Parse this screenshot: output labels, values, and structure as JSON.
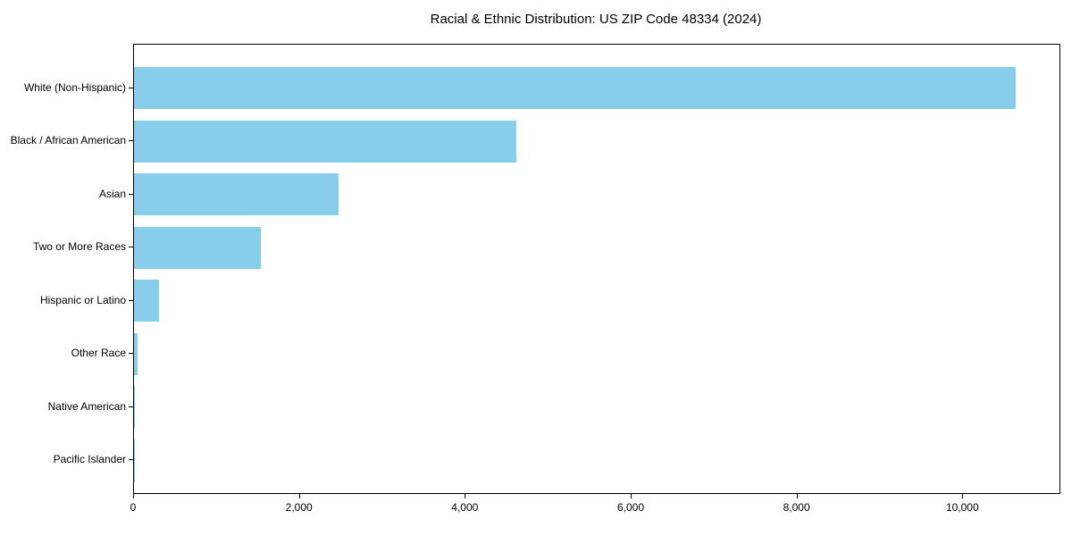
{
  "chart_data": {
    "type": "bar",
    "orientation": "horizontal",
    "title": "Racial & Ethnic Distribution: US ZIP Code 48334 (2024)",
    "categories": [
      "White (Non-Hispanic)",
      "Black / African American",
      "Asian",
      "Two or More Races",
      "Hispanic or Latino",
      "Other Race",
      "Native American",
      "Pacific Islander"
    ],
    "values": [
      10635,
      4610,
      2465,
      1530,
      300,
      45,
      15,
      5
    ],
    "bar_color": "#87CEEB",
    "xlabel": "",
    "ylabel": "",
    "xlim": [
      0,
      11160
    ],
    "xticks": {
      "values": [
        0,
        2000,
        4000,
        6000,
        8000,
        10000
      ],
      "labels": [
        "0",
        "2,000",
        "4,000",
        "6,000",
        "8,000",
        "10,000"
      ]
    },
    "grid": false,
    "legend_position": "none"
  }
}
